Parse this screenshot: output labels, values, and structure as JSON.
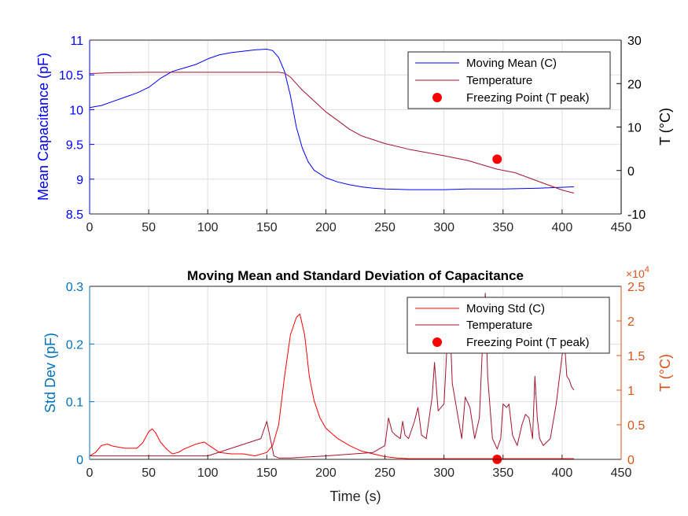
{
  "chart_data": [
    {
      "type": "line",
      "title": "",
      "xlabel": "",
      "ylabel": "Mean Capacitance (pF)",
      "ylabel_right": "T (°C)",
      "xlim": [
        0,
        450
      ],
      "ylim": [
        8.5,
        11
      ],
      "ylim_right": [
        -10,
        30
      ],
      "xticks": [
        "0",
        "50",
        "100",
        "150",
        "200",
        "250",
        "300",
        "350",
        "400",
        "450"
      ],
      "yticks": [
        "8.5",
        "9",
        "9.5",
        "10",
        "10.5",
        "11"
      ],
      "yticks_right": [
        "-10",
        "0",
        "10",
        "20",
        "30"
      ],
      "grid": true,
      "legend_position": "top-right",
      "legend": [
        "Moving Mean (C)",
        "Temperature",
        "Freezing Point (T peak)"
      ],
      "colors": {
        "left_axis": "#0000ff",
        "right_axis": "#000000",
        "mean": "#0000ff",
        "temperature": "#a2142f",
        "marker": "#ff0000"
      },
      "series": [
        {
          "name": "Moving Mean (C)",
          "axis": "left",
          "x": [
            0,
            10,
            20,
            30,
            40,
            50,
            60,
            70,
            80,
            90,
            100,
            110,
            120,
            130,
            140,
            150,
            155,
            160,
            165,
            170,
            175,
            180,
            185,
            190,
            200,
            210,
            220,
            230,
            240,
            250,
            270,
            300,
            320,
            350,
            380,
            410
          ],
          "y": [
            10.03,
            10.06,
            10.12,
            10.18,
            10.24,
            10.32,
            10.45,
            10.55,
            10.6,
            10.65,
            10.73,
            10.79,
            10.82,
            10.84,
            10.86,
            10.87,
            10.85,
            10.75,
            10.55,
            10.2,
            9.75,
            9.45,
            9.25,
            9.13,
            9.02,
            8.96,
            8.92,
            8.89,
            8.87,
            8.86,
            8.85,
            8.85,
            8.86,
            8.86,
            8.87,
            8.89
          ]
        },
        {
          "name": "Temperature",
          "axis": "right",
          "x": [
            0,
            20,
            50,
            100,
            150,
            160,
            165,
            170,
            175,
            180,
            190,
            200,
            210,
            220,
            230,
            250,
            270,
            300,
            320,
            345,
            360,
            370,
            380,
            390,
            400,
            410
          ],
          "y": [
            22.3,
            22.5,
            22.6,
            22.6,
            22.6,
            22.6,
            22.4,
            21.5,
            20,
            18.5,
            16,
            13.5,
            11.5,
            9.5,
            8,
            6.2,
            4.9,
            3.4,
            2.3,
            0.3,
            -0.5,
            -1.5,
            -2.5,
            -3.5,
            -4.5,
            -5.2
          ]
        },
        {
          "name": "Freezing Point (T peak)",
          "axis": "right",
          "marker": "circle",
          "x": [
            345
          ],
          "y": [
            2.6
          ]
        }
      ]
    },
    {
      "type": "line",
      "title": "Moving Mean and Standard Deviation of Capacitance",
      "xlabel": "Time (s)",
      "ylabel": "Std Dev (pF)",
      "ylabel_right": "T (°C)",
      "right_axis_exponent": "×10",
      "right_axis_exponent_power": "4",
      "xlim": [
        0,
        450
      ],
      "ylim": [
        0,
        0.3
      ],
      "ylim_right": [
        0,
        2.5
      ],
      "xticks": [
        "0",
        "50",
        "100",
        "150",
        "200",
        "250",
        "300",
        "350",
        "400",
        "450"
      ],
      "yticks": [
        "0",
        "0.1",
        "0.2",
        "0.3"
      ],
      "yticks_right": [
        "0",
        "0.5",
        "1",
        "1.5",
        "2",
        "2.5"
      ],
      "grid": true,
      "legend_position": "top-right",
      "legend": [
        "Moving Std (C)",
        "Temperature",
        "Freezing Point (T peak)"
      ],
      "colors": {
        "left_axis": "#0072bd",
        "right_axis": "#d95319",
        "std": "#ff0000",
        "temperature": "#a2142f",
        "marker": "#ff0000"
      },
      "series": [
        {
          "name": "Moving Std (C)",
          "axis": "right",
          "x": [
            0,
            5,
            10,
            15,
            20,
            30,
            40,
            45,
            50,
            53,
            56,
            60,
            65,
            70,
            75,
            80,
            90,
            97,
            103,
            110,
            120,
            130,
            140,
            150,
            155,
            160,
            165,
            170,
            175,
            178,
            182,
            186,
            190,
            195,
            200,
            210,
            220,
            230,
            240,
            250,
            260,
            270,
            300,
            350,
            400,
            410
          ],
          "y": [
            0.05,
            0.1,
            0.2,
            0.22,
            0.19,
            0.16,
            0.16,
            0.24,
            0.4,
            0.44,
            0.38,
            0.25,
            0.15,
            0.08,
            0.1,
            0.15,
            0.22,
            0.25,
            0.18,
            0.1,
            0.08,
            0.08,
            0.05,
            0.1,
            0.2,
            0.5,
            1.2,
            1.8,
            2.05,
            2.1,
            1.8,
            1.2,
            0.85,
            0.6,
            0.45,
            0.3,
            0.2,
            0.12,
            0.08,
            0.04,
            0.02,
            0.01,
            0.01,
            0.01,
            0.01,
            0.01
          ]
        },
        {
          "name": "Temperature",
          "axis": "right",
          "x": [
            0,
            50,
            100,
            145,
            150,
            153,
            156,
            160,
            170,
            200,
            240,
            250,
            253,
            256,
            259,
            263,
            265,
            267,
            270,
            275,
            278,
            281,
            285,
            290,
            292,
            295,
            300,
            303,
            305,
            307,
            310,
            315,
            318,
            322,
            326,
            330,
            333,
            335,
            337,
            341,
            345,
            348,
            350,
            353,
            355,
            358,
            362,
            366,
            369,
            372,
            375,
            377,
            379,
            381,
            384,
            390,
            395,
            400,
            402,
            404,
            406,
            408,
            410
          ],
          "y": [
            0.05,
            0.05,
            0.05,
            0.3,
            0.55,
            0.3,
            0.05,
            0.02,
            0.02,
            0.05,
            0.1,
            0.2,
            0.6,
            0.4,
            0.35,
            0.3,
            0.55,
            0.35,
            0.3,
            0.55,
            0.75,
            0.35,
            0.3,
            0.9,
            1.4,
            0.7,
            0.8,
            1.8,
            2,
            1.1,
            0.8,
            0.3,
            0.9,
            0.75,
            0.3,
            0.6,
            1.8,
            2.4,
            1.2,
            0.3,
            0.15,
            0.3,
            0.8,
            0.75,
            0.8,
            0.35,
            0.2,
            0.5,
            0.65,
            0.6,
            0.3,
            1.2,
            0.6,
            0.3,
            0.2,
            0.3,
            0.8,
            1.5,
            1.7,
            1.2,
            1.15,
            1.05,
            1.0
          ]
        },
        {
          "name": "Freezing Point (T peak)",
          "axis": "right",
          "marker": "circle",
          "x": [
            345
          ],
          "y": [
            0
          ]
        }
      ]
    }
  ]
}
